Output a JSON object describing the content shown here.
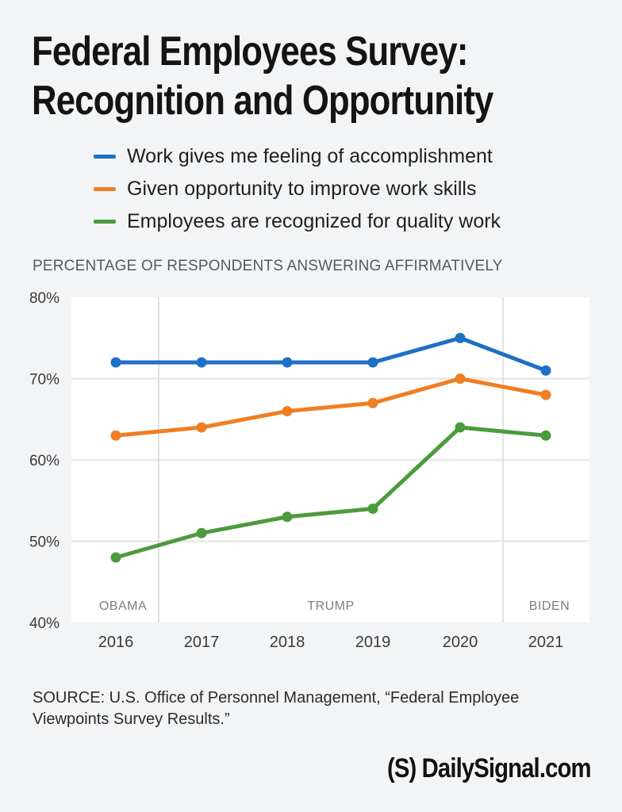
{
  "title_line1": "Federal Employees Survey:",
  "title_line2": "Recognition and Opportunity",
  "source": "SOURCE: U.S. Office of Personnel Management, “Federal Employee Viewpoints Survey Results.”",
  "logo": "(S) DailySignal.com",
  "chart_data": {
    "type": "line",
    "subtitle": "PERCENTAGE OF RESPONDENTS ANSWERING AFFIRMATIVELY",
    "categories": [
      "2016",
      "2017",
      "2018",
      "2019",
      "2020",
      "2021"
    ],
    "ylim": [
      40,
      80
    ],
    "yticks": [
      "40%",
      "50%",
      "60%",
      "70%",
      "80%"
    ],
    "grid": true,
    "legend_position": "top",
    "series": [
      {
        "name": "Work gives me feeling of accomplishment",
        "color": "#1f6fc5",
        "values": [
          72,
          72,
          72,
          72,
          75,
          71
        ]
      },
      {
        "name": "Given opportunity to improve work skills",
        "color": "#f07e22",
        "values": [
          63,
          64,
          66,
          67,
          70,
          68
        ]
      },
      {
        "name": "Employees are recognized for quality work",
        "color": "#4b9b3c",
        "values": [
          48,
          51,
          53,
          54,
          64,
          63
        ]
      }
    ],
    "eras": [
      {
        "label": "OBAMA",
        "start": "2016"
      },
      {
        "label": "TRUMP",
        "start": "2017"
      },
      {
        "label": "BIDEN",
        "start": "2021"
      }
    ]
  }
}
